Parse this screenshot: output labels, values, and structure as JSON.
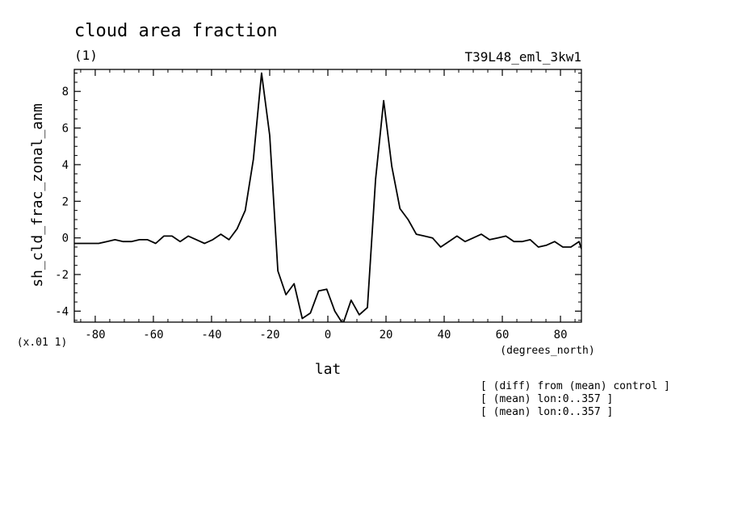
{
  "chart_data": {
    "type": "line",
    "title": "cloud area fraction",
    "units_label": "(1)",
    "run_label": "T39L48_eml_3kw1",
    "xlabel": "lat",
    "xunits": "(degrees_north)",
    "ylabel": "sh_cld_frac_zonal_anm",
    "yscale_label": "(x.01 1)",
    "notes": [
      "[ (diff) from (mean) control ]",
      "[ (mean) lon:0..357 ]",
      "[ (mean) lon:0..357 ]"
    ],
    "xlim": [
      -87.2,
      87.2
    ],
    "ylim": [
      -4.6,
      9.2
    ],
    "xticks": [
      -80,
      -60,
      -40,
      -20,
      0,
      20,
      40,
      60,
      80
    ],
    "xtick_labels": [
      "-80",
      "-60",
      "-40",
      "-20",
      "0",
      "20",
      "40",
      "60",
      "80"
    ],
    "yticks": [
      -4,
      -2,
      0,
      2,
      4,
      6,
      8
    ],
    "ytick_labels": [
      "-4",
      "-2",
      "0",
      "2",
      "4",
      "6",
      "8"
    ],
    "grid": false,
    "series": [
      {
        "x": [
          -87.2,
          -84.4,
          -81.6,
          -78.8,
          -76.0,
          -73.2,
          -70.4,
          -67.6,
          -64.8,
          -62.0,
          -59.2,
          -56.4,
          -53.6,
          -50.8,
          -48.0,
          -45.2,
          -42.4,
          -39.6,
          -36.8,
          -34.0,
          -31.2,
          -28.4,
          -25.6,
          -22.8,
          -20.0,
          -17.2,
          -14.4,
          -11.6,
          -8.8,
          -6.0,
          -3.2,
          -0.4,
          2.4,
          5.2,
          8.0,
          10.8,
          13.6,
          16.4,
          19.2,
          22.0,
          24.8,
          27.6,
          30.4,
          33.2,
          36.0,
          38.8,
          41.6,
          44.4,
          47.2,
          50.0,
          52.8,
          55.6,
          58.4,
          61.2,
          64.0,
          66.8,
          69.6,
          72.4,
          75.2,
          78.0,
          80.8,
          83.6,
          86.4,
          87.2
        ],
        "y": [
          -0.3,
          -0.3,
          -0.3,
          -0.3,
          -0.2,
          -0.1,
          -0.2,
          -0.2,
          -0.1,
          -0.1,
          -0.3,
          0.1,
          0.1,
          -0.2,
          0.1,
          -0.1,
          -0.3,
          -0.1,
          0.2,
          -0.1,
          0.5,
          1.5,
          4.3,
          9.0,
          5.6,
          -1.8,
          -3.1,
          -2.5,
          -4.4,
          -4.1,
          -2.9,
          -2.8,
          -4.0,
          -4.7,
          -3.4,
          -4.2,
          -3.8,
          3.2,
          7.5,
          3.9,
          1.6,
          1.0,
          0.2,
          0.1,
          0.0,
          -0.5,
          -0.2,
          0.1,
          -0.2,
          0.0,
          0.2,
          -0.1,
          0.0,
          0.1,
          -0.2,
          -0.2,
          -0.1,
          -0.5,
          -0.4,
          -0.2,
          -0.5,
          -0.5,
          -0.2,
          -0.6
        ]
      }
    ]
  }
}
